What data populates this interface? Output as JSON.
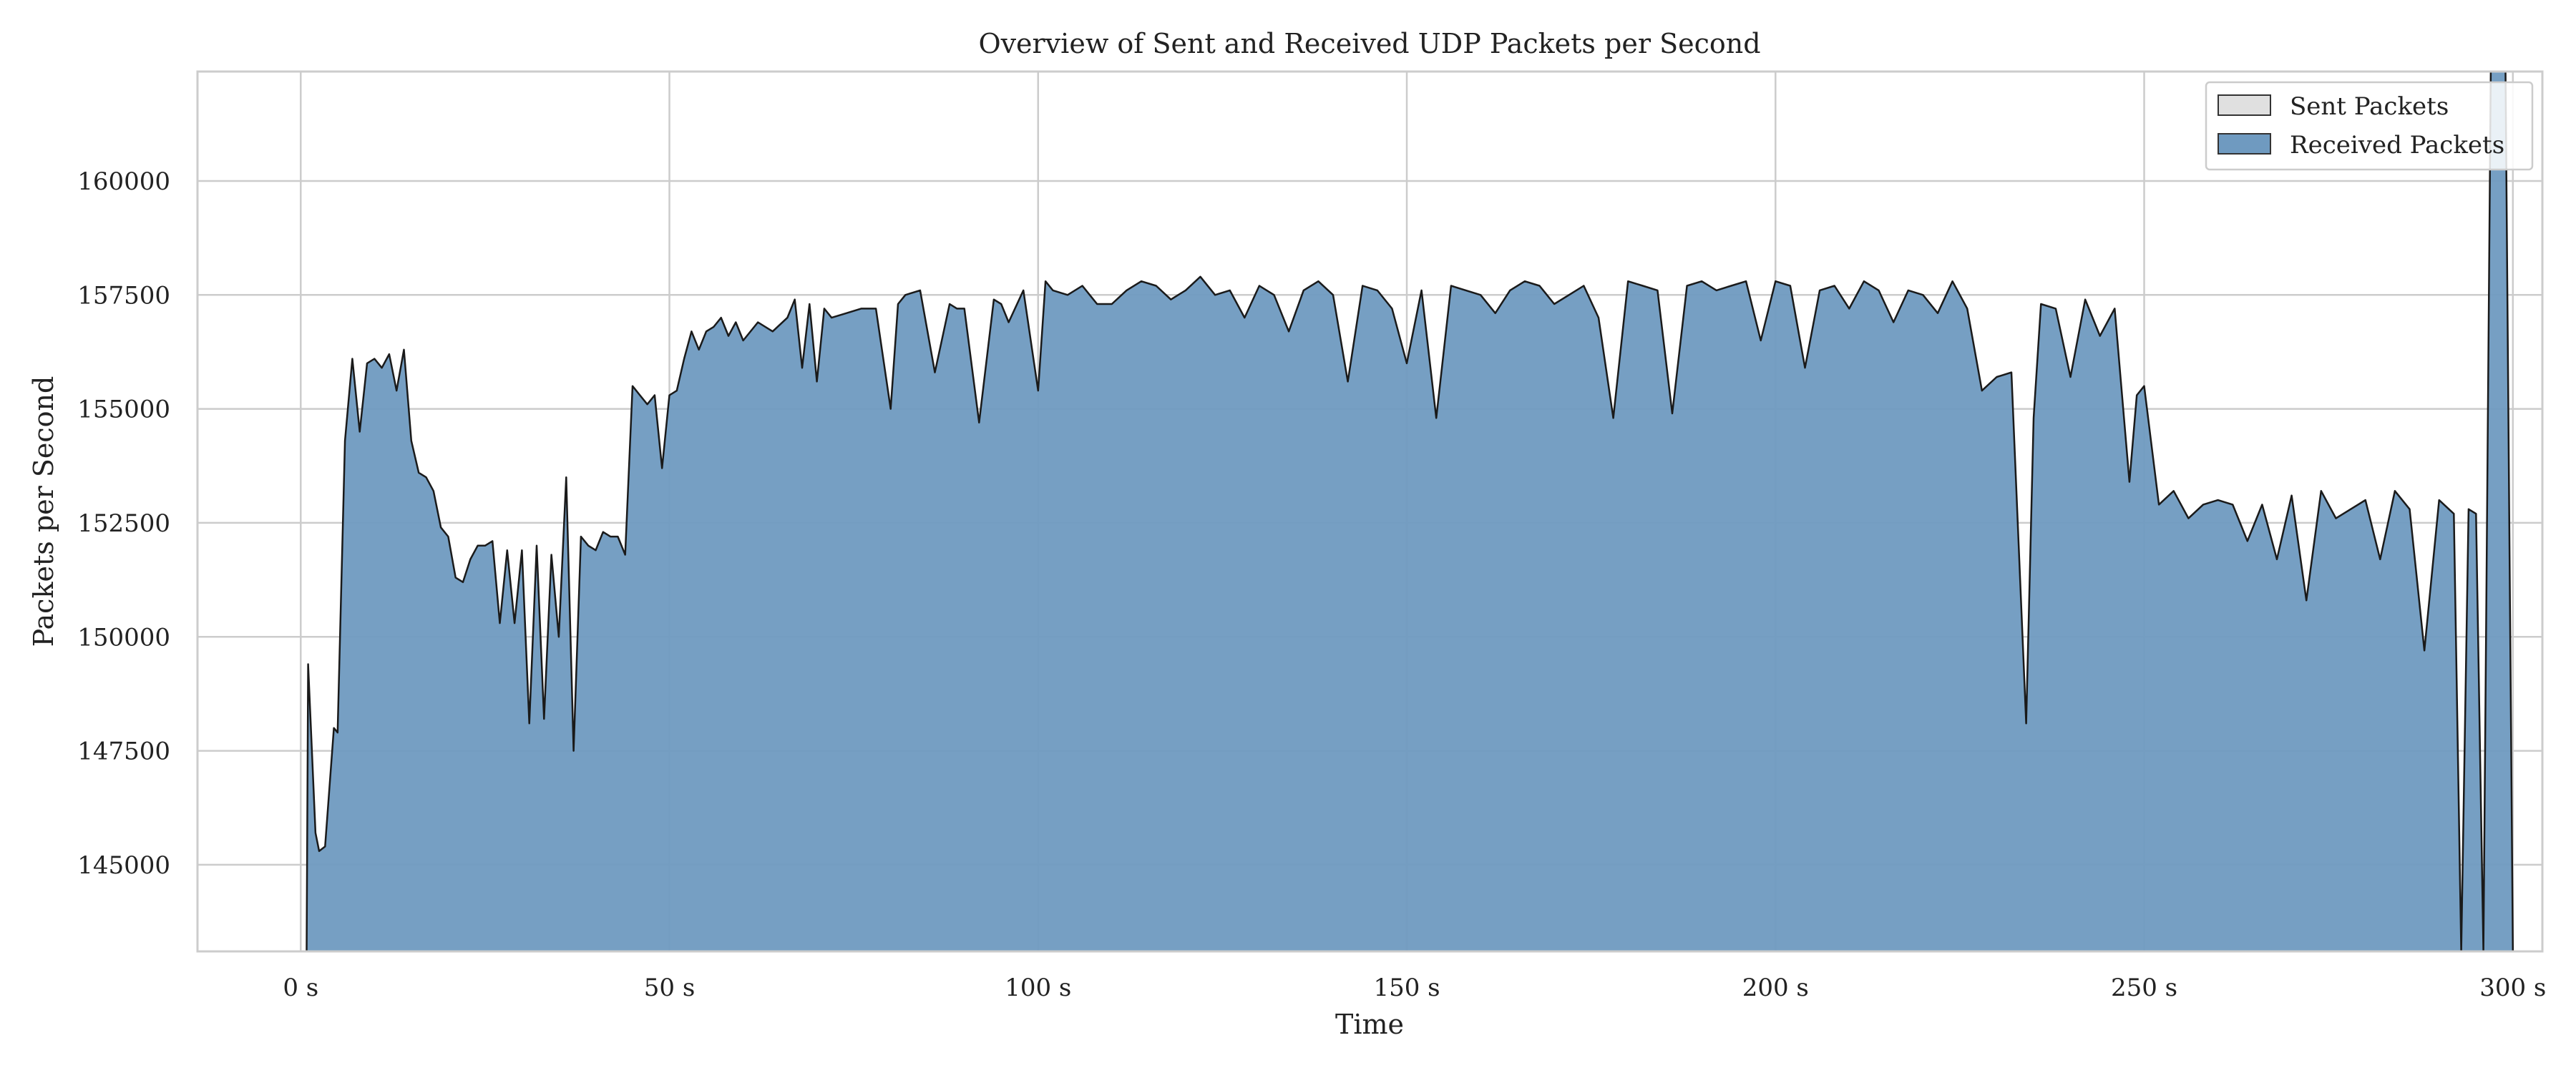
{
  "chart_data": {
    "type": "area",
    "title": "Overview of Sent and Received UDP Packets per Second",
    "xlabel": "Time",
    "ylabel": "Packets per Second",
    "xlim": [
      -14,
      304
    ],
    "ylim": [
      143100,
      162400
    ],
    "x_ticks": [
      0,
      50,
      100,
      150,
      200,
      250,
      300
    ],
    "x_tick_labels": [
      "0 s",
      "50 s",
      "100 s",
      "150 s",
      "200 s",
      "250 s",
      "300 s"
    ],
    "y_ticks": [
      145000,
      147500,
      150000,
      152500,
      155000,
      157500,
      160000
    ],
    "y_tick_labels": [
      "145000",
      "147500",
      "150000",
      "152500",
      "155000",
      "157500",
      "160000"
    ],
    "grid": true,
    "legend_position": "top-right",
    "series": [
      {
        "name": "Sent Packets",
        "color": "#e0e0e0",
        "x": [],
        "values": []
      },
      {
        "name": "Received Packets",
        "color": "#6f9ac0",
        "x": [
          0.8,
          1,
          2,
          2.5,
          3.3,
          4.5,
          5,
          6,
          7,
          8,
          9,
          10,
          11,
          12,
          13,
          14,
          15,
          16,
          17,
          18,
          19,
          20,
          21,
          22,
          23,
          24,
          25,
          26,
          27,
          28,
          29,
          30,
          31,
          32,
          33,
          34,
          35,
          36,
          37,
          38,
          39,
          40,
          41,
          42,
          43,
          44,
          45,
          46,
          47,
          48,
          49,
          50,
          51,
          52,
          53,
          54,
          55,
          56,
          57,
          58,
          59,
          60,
          62,
          64,
          66,
          67,
          68,
          69,
          70,
          71,
          72,
          74,
          76,
          78,
          80,
          81,
          82,
          84,
          86,
          88,
          89,
          90,
          92,
          94,
          95,
          96,
          98,
          100,
          101,
          102,
          104,
          106,
          108,
          110,
          112,
          114,
          116,
          118,
          120,
          122,
          124,
          126,
          128,
          130,
          132,
          134,
          136,
          138,
          140,
          142,
          144,
          146,
          148,
          150,
          152,
          154,
          156,
          158,
          160,
          162,
          164,
          166,
          168,
          170,
          172,
          174,
          176,
          178,
          180,
          182,
          184,
          186,
          188,
          190,
          192,
          194,
          196,
          198,
          200,
          202,
          204,
          206,
          208,
          210,
          212,
          214,
          216,
          218,
          220,
          222,
          224,
          226,
          228,
          230,
          232,
          234,
          235,
          236,
          238,
          240,
          242,
          244,
          246,
          248,
          249,
          250,
          252,
          254,
          256,
          258,
          260,
          262,
          264,
          266,
          268,
          270,
          272,
          274,
          276,
          278,
          280,
          282,
          284,
          286,
          288,
          290,
          292,
          293,
          294,
          295,
          296,
          297,
          298,
          299,
          300
        ],
        "values": [
          143100,
          149400,
          145700,
          145300,
          145400,
          148000,
          147900,
          154300,
          156100,
          154500,
          156000,
          156100,
          155900,
          156200,
          155400,
          156300,
          154300,
          153600,
          153500,
          153200,
          152400,
          152200,
          151300,
          151200,
          151700,
          152000,
          152000,
          152100,
          150300,
          151900,
          150300,
          151900,
          148100,
          152000,
          148200,
          151800,
          150000,
          153500,
          147500,
          152200,
          152000,
          151900,
          152300,
          152200,
          152200,
          151800,
          155500,
          155300,
          155100,
          155300,
          153700,
          155300,
          155400,
          156100,
          156700,
          156300,
          156700,
          156800,
          157000,
          156600,
          156900,
          156500,
          156900,
          156700,
          157000,
          157400,
          155900,
          157300,
          155600,
          157200,
          157000,
          157100,
          157200,
          157200,
          155000,
          157300,
          157500,
          157600,
          155800,
          157300,
          157200,
          157200,
          154700,
          157400,
          157300,
          156900,
          157600,
          155400,
          157800,
          157600,
          157500,
          157700,
          157300,
          157300,
          157600,
          157800,
          157700,
          157400,
          157600,
          157900,
          157500,
          157600,
          157000,
          157700,
          157500,
          156700,
          157600,
          157800,
          157500,
          155600,
          157700,
          157600,
          157200,
          156000,
          157600,
          154800,
          157700,
          157600,
          157500,
          157100,
          157600,
          157800,
          157700,
          157300,
          157500,
          157700,
          157000,
          154800,
          157800,
          157700,
          157600,
          154900,
          157700,
          157800,
          157600,
          157700,
          157800,
          156500,
          157800,
          157700,
          155900,
          157600,
          157700,
          157200,
          157800,
          157600,
          156900,
          157600,
          157500,
          157100,
          157800,
          157200,
          155400,
          155700,
          155800,
          148100,
          154800,
          157300,
          157200,
          155700,
          157400,
          156600,
          157200,
          153400,
          155300,
          155500,
          152900,
          153200,
          152600,
          152900,
          153000,
          152900,
          152100,
          152900,
          151700,
          153100,
          150800,
          153200,
          152600,
          152800,
          153000,
          151700,
          153200,
          152800,
          149700,
          153000,
          152700,
          143100,
          152800,
          152700,
          143100,
          162400,
          162500,
          162400,
          143100
        ]
      }
    ]
  }
}
